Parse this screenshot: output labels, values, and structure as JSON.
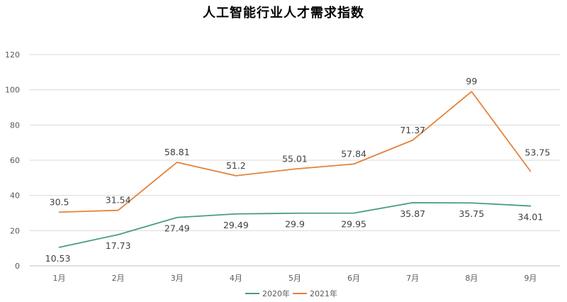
{
  "chart_data": {
    "type": "line",
    "title": "人工智能行业人才需求指数",
    "categories": [
      "1月",
      "2月",
      "3月",
      "4月",
      "5月",
      "6月",
      "7月",
      "8月",
      "9月"
    ],
    "series": [
      {
        "name": "2020年",
        "color": "#4a9e79",
        "values": [
          10.53,
          17.73,
          27.49,
          29.49,
          29.9,
          29.95,
          35.87,
          35.75,
          34.01
        ]
      },
      {
        "name": "2021年",
        "color": "#e5813a",
        "values": [
          30.5,
          31.54,
          58.81,
          51.2,
          55.01,
          57.84,
          71.37,
          99,
          53.75
        ]
      }
    ],
    "data_labels": [
      [
        "10.53",
        "17.73",
        "27.49",
        "29.49",
        "29.9",
        "29.95",
        "35.87",
        "35.75",
        "34.01"
      ],
      [
        "30.5",
        "31.54",
        "58.81",
        "51.2",
        "55.01",
        "57.84",
        "71.37",
        "99",
        "53.75"
      ]
    ],
    "ylim": [
      0,
      120
    ],
    "yticks": [
      "0",
      "20",
      "40",
      "60",
      "80",
      "100",
      "120"
    ],
    "xlabel": "",
    "ylabel": "",
    "grid": true,
    "legend_position": "bottom"
  }
}
